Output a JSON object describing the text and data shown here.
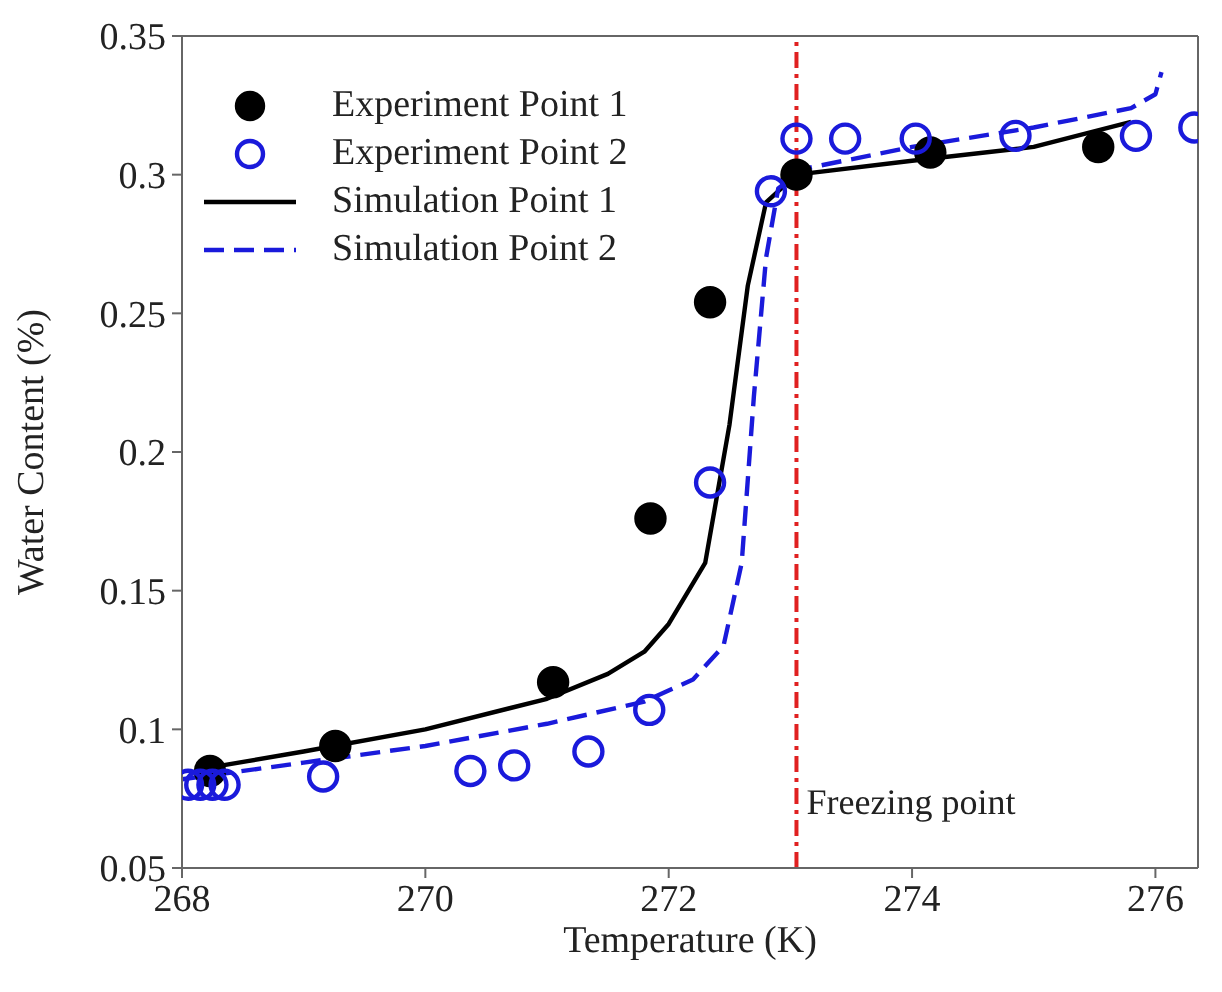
{
  "chart_data": {
    "type": "scatter",
    "xlabel": "Temperature (K)",
    "ylabel": "Water Content (%)",
    "xlim": [
      268,
      276.35
    ],
    "xticks": [
      268,
      270,
      272,
      274,
      276
    ],
    "ylim": [
      0.05,
      0.35
    ],
    "yticks": [
      0.05,
      0.1,
      0.15,
      0.2,
      0.25,
      0.3,
      0.35
    ],
    "legend": "top left",
    "grid": false,
    "series": [
      {
        "name": "Experiment Point 1",
        "marker": "circle",
        "color": "#000000",
        "x": [
          268.23,
          269.26,
          271.05,
          271.85,
          272.34,
          273.05,
          274.15,
          275.53
        ],
        "values": [
          0.085,
          0.094,
          0.117,
          0.176,
          0.254,
          0.3,
          0.308,
          0.31
        ]
      },
      {
        "name": "Experiment Point 2",
        "marker": "circle",
        "color": "#1a1adb",
        "x": [
          268.05,
          268.15,
          268.25,
          268.35,
          269.16,
          270.37,
          270.73,
          271.34,
          271.84,
          272.34,
          272.84,
          273.05,
          273.45,
          274.03,
          274.85,
          275.84,
          276.32
        ],
        "values": [
          0.08,
          0.08,
          0.08,
          0.08,
          0.083,
          0.085,
          0.087,
          0.092,
          0.107,
          0.189,
          0.294,
          0.313,
          0.313,
          0.313,
          0.314,
          0.314,
          0.317
        ]
      },
      {
        "name": "Simulation Point 1",
        "type": "line",
        "marker": "none",
        "line_style": "solid",
        "color": "#000000",
        "x": [
          268.2,
          269,
          270,
          271,
          271.5,
          271.8,
          272,
          272.3,
          272.5,
          272.65,
          272.8,
          273.05,
          274,
          275,
          275.8
        ],
        "values": [
          0.086,
          0.092,
          0.1,
          0.111,
          0.12,
          0.128,
          0.138,
          0.16,
          0.21,
          0.26,
          0.29,
          0.3,
          0.305,
          0.31,
          0.319
        ]
      },
      {
        "name": "Simulation Point 2",
        "type": "line",
        "marker": "none",
        "line_style": "dashed",
        "color": "#1a1adb",
        "x": [
          268,
          269,
          270,
          271,
          271.8,
          272.2,
          272.45,
          272.6,
          272.7,
          272.8,
          272.9,
          273.1,
          274,
          275,
          275.8,
          276,
          276.05
        ],
        "values": [
          0.082,
          0.088,
          0.094,
          0.102,
          0.11,
          0.118,
          0.13,
          0.16,
          0.22,
          0.27,
          0.295,
          0.302,
          0.31,
          0.317,
          0.324,
          0.329,
          0.337
        ]
      }
    ],
    "ref_lines": [
      {
        "axis": "x",
        "value": 273.05,
        "label": "Freezing point",
        "color": "#e02020",
        "line_style": "dashdot"
      }
    ]
  }
}
